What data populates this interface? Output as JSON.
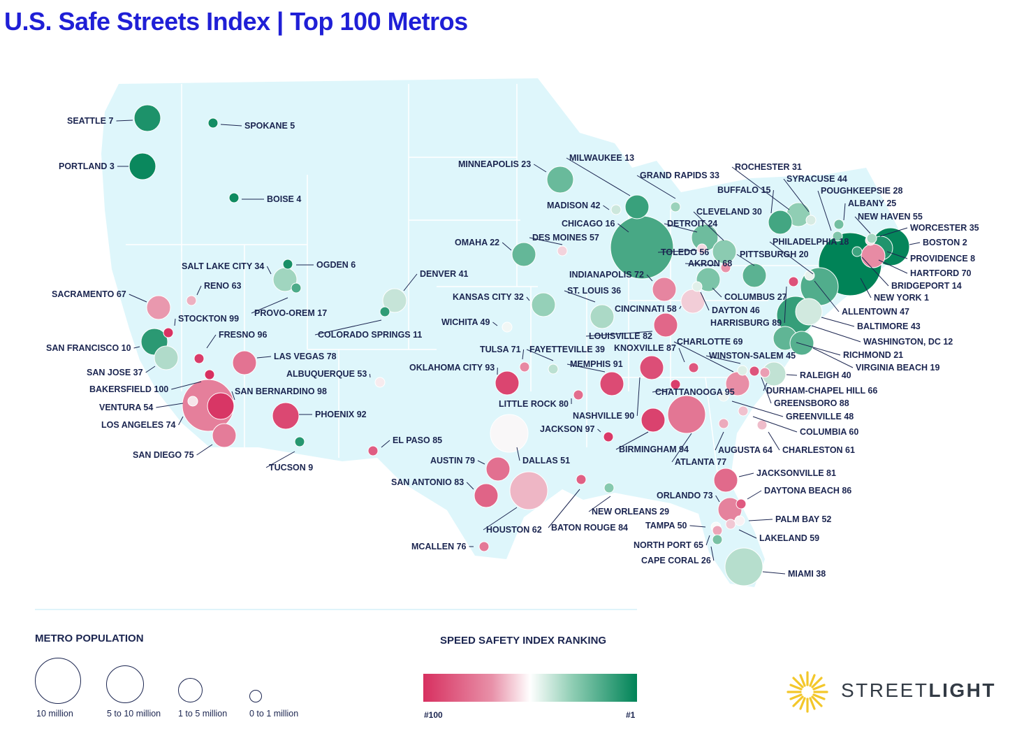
{
  "title": "U.S. Safe Streets Index  | Top 100 Metros",
  "colors": {
    "title": "#1f1fd6",
    "land": "#def6fb",
    "text": "#1b2550",
    "rank_low": "#d73060",
    "rank_mid": "#ffffff",
    "rank_high": "#008357"
  },
  "legend_population": {
    "title": "METRO POPULATION",
    "items": [
      {
        "label": "10 million",
        "icon": "circle-large"
      },
      {
        "label": "5 to 10 million",
        "icon": "circle-medium"
      },
      {
        "label": "1 to 5 million",
        "icon": "circle-small"
      },
      {
        "label": "0 to 1 million",
        "icon": "circle-tiny"
      }
    ]
  },
  "legend_ranking": {
    "title": "SPEED SAFETY INDEX RANKING",
    "min_label": "#100",
    "max_label": "#1"
  },
  "logo": {
    "prefix": "STREET",
    "suffix": "LIGHT",
    "icon": "sun-icon"
  },
  "chart_data": {
    "type": "bubble-map",
    "value_name": "Speed Safety Index Ranking (1 = safest)",
    "size_name": "Metro population class",
    "metros": [
      {
        "name": "SEATTLE",
        "rank": 7,
        "pop_class": 3
      },
      {
        "name": "SPOKANE",
        "rank": 5,
        "pop_class": 1
      },
      {
        "name": "PORTLAND",
        "rank": 3,
        "pop_class": 3
      },
      {
        "name": "BOISE",
        "rank": 4,
        "pop_class": 1
      },
      {
        "name": "MINNEAPOLIS",
        "rank": 23,
        "pop_class": 3
      },
      {
        "name": "MILWAUKEE",
        "rank": 13,
        "pop_class": 2
      },
      {
        "name": "GRAND RAPIDS",
        "rank": 33,
        "pop_class": 1
      },
      {
        "name": "ROCHESTER",
        "rank": 31,
        "pop_class": 2
      },
      {
        "name": "SYRACUSE",
        "rank": 44,
        "pop_class": 1
      },
      {
        "name": "POUGHKEEPSIE",
        "rank": 28,
        "pop_class": 1
      },
      {
        "name": "ALBANY",
        "rank": 25,
        "pop_class": 1
      },
      {
        "name": "BUFFALO",
        "rank": 15,
        "pop_class": 2
      },
      {
        "name": "NEW HAVEN",
        "rank": 55,
        "pop_class": 1
      },
      {
        "name": "WORCESTER",
        "rank": 35,
        "pop_class": 1
      },
      {
        "name": "BOSTON",
        "rank": 2,
        "pop_class": 4
      },
      {
        "name": "PROVIDENCE",
        "rank": 8,
        "pop_class": 2
      },
      {
        "name": "HARTFORD",
        "rank": 70,
        "pop_class": 2
      },
      {
        "name": "BRIDGEPORT",
        "rank": 14,
        "pop_class": 1
      },
      {
        "name": "NEW YORK",
        "rank": 1,
        "pop_class": 5
      },
      {
        "name": "MADISON",
        "rank": 42,
        "pop_class": 1
      },
      {
        "name": "CHICAGO",
        "rank": 16,
        "pop_class": 5
      },
      {
        "name": "DETROIT",
        "rank": 24,
        "pop_class": 3
      },
      {
        "name": "CLEVELAND",
        "rank": 30,
        "pop_class": 2
      },
      {
        "name": "TOLEDO",
        "rank": 56,
        "pop_class": 1
      },
      {
        "name": "AKRON",
        "rank": 68,
        "pop_class": 1
      },
      {
        "name": "PHILADELPHIA",
        "rank": 18,
        "pop_class": 4
      },
      {
        "name": "PITTSBURGH",
        "rank": 20,
        "pop_class": 2
      },
      {
        "name": "OMAHA",
        "rank": 22,
        "pop_class": 2
      },
      {
        "name": "DES MOINES",
        "rank": 57,
        "pop_class": 1
      },
      {
        "name": "INDIANAPOLIS",
        "rank": 72,
        "pop_class": 2
      },
      {
        "name": "COLUMBUS",
        "rank": 27,
        "pop_class": 2
      },
      {
        "name": "DAYTON",
        "rank": 46,
        "pop_class": 1
      },
      {
        "name": "CINCINNATI",
        "rank": 58,
        "pop_class": 2
      },
      {
        "name": "ALLENTOWN",
        "rank": 47,
        "pop_class": 1
      },
      {
        "name": "SALT LAKE CITY",
        "rank": 34,
        "pop_class": 2
      },
      {
        "name": "OGDEN",
        "rank": 6,
        "pop_class": 1
      },
      {
        "name": "RENO",
        "rank": 63,
        "pop_class": 1
      },
      {
        "name": "PROVO-OREM",
        "rank": 17,
        "pop_class": 1
      },
      {
        "name": "SACRAMENTO",
        "rank": 67,
        "pop_class": 2
      },
      {
        "name": "STOCKTON",
        "rank": 99,
        "pop_class": 1
      },
      {
        "name": "FRESNO",
        "rank": 96,
        "pop_class": 1
      },
      {
        "name": "SAN FRANCISCO",
        "rank": 10,
        "pop_class": 3
      },
      {
        "name": "SAN JOSE",
        "rank": 37,
        "pop_class": 2
      },
      {
        "name": "BAKERSFIELD",
        "rank": 100,
        "pop_class": 1
      },
      {
        "name": "VENTURA",
        "rank": 54,
        "pop_class": 1
      },
      {
        "name": "LOS ANGELES",
        "rank": 74,
        "pop_class": 6
      },
      {
        "name": "SAN BERNARDINO",
        "rank": 98,
        "pop_class": 3
      },
      {
        "name": "SAN DIEGO",
        "rank": 75,
        "pop_class": 2
      },
      {
        "name": "LAS VEGAS",
        "rank": 78,
        "pop_class": 2
      },
      {
        "name": "PHOENIX",
        "rank": 92,
        "pop_class": 3
      },
      {
        "name": "TUCSON",
        "rank": 9,
        "pop_class": 1
      },
      {
        "name": "ALBUQUERQUE",
        "rank": 53,
        "pop_class": 1
      },
      {
        "name": "DENVER",
        "rank": 41,
        "pop_class": 2
      },
      {
        "name": "COLORADO SPRINGS",
        "rank": 11,
        "pop_class": 1
      },
      {
        "name": "KANSAS CITY",
        "rank": 32,
        "pop_class": 2
      },
      {
        "name": "WICHITA",
        "rank": 49,
        "pop_class": 1
      },
      {
        "name": "ST. LOUIS",
        "rank": 36,
        "pop_class": 2
      },
      {
        "name": "LOUISVILLE",
        "rank": 82,
        "pop_class": 2
      },
      {
        "name": "KNOXVILLE",
        "rank": 87,
        "pop_class": 1
      },
      {
        "name": "CHARLOTTE",
        "rank": 69,
        "pop_class": 2
      },
      {
        "name": "WINSTON-SALEM",
        "rank": 45,
        "pop_class": 1
      },
      {
        "name": "RALEIGH",
        "rank": 40,
        "pop_class": 2
      },
      {
        "name": "DURHAM-CHAPEL HILL",
        "rank": 66,
        "pop_class": 1
      },
      {
        "name": "GREENSBORO",
        "rank": 88,
        "pop_class": 1
      },
      {
        "name": "GREENVILLE",
        "rank": 48,
        "pop_class": 1
      },
      {
        "name": "COLUMBIA",
        "rank": 60,
        "pop_class": 1
      },
      {
        "name": "CHARLESTON",
        "rank": 61,
        "pop_class": 1
      },
      {
        "name": "HARRISBURG",
        "rank": 89,
        "pop_class": 1
      },
      {
        "name": "BALTIMORE",
        "rank": 43,
        "pop_class": 3
      },
      {
        "name": "WASHINGTON, DC",
        "rank": 12,
        "pop_class": 4
      },
      {
        "name": "RICHMOND",
        "rank": 21,
        "pop_class": 2
      },
      {
        "name": "VIRGINIA BEACH",
        "rank": 19,
        "pop_class": 2
      },
      {
        "name": "TULSA",
        "rank": 71,
        "pop_class": 1
      },
      {
        "name": "FAYETTEVILLE",
        "rank": 39,
        "pop_class": 1
      },
      {
        "name": "OKLAHOMA CITY",
        "rank": 93,
        "pop_class": 2
      },
      {
        "name": "MEMPHIS",
        "rank": 91,
        "pop_class": 2
      },
      {
        "name": "LITTLE ROCK",
        "rank": 80,
        "pop_class": 1
      },
      {
        "name": "JACKSON",
        "rank": 97,
        "pop_class": 1
      },
      {
        "name": "NASHVILLE",
        "rank": 90,
        "pop_class": 2
      },
      {
        "name": "CHATTANOOGA",
        "rank": 95,
        "pop_class": 1
      },
      {
        "name": "BIRMINGHAM",
        "rank": 94,
        "pop_class": 2
      },
      {
        "name": "ATLANTA",
        "rank": 77,
        "pop_class": 4
      },
      {
        "name": "AUGUSTA",
        "rank": 64,
        "pop_class": 1
      },
      {
        "name": "EL PASO",
        "rank": 85,
        "pop_class": 1
      },
      {
        "name": "DALLAS",
        "rank": 51,
        "pop_class": 4
      },
      {
        "name": "AUSTIN",
        "rank": 79,
        "pop_class": 2
      },
      {
        "name": "SAN ANTONIO",
        "rank": 83,
        "pop_class": 2
      },
      {
        "name": "HOUSTON",
        "rank": 62,
        "pop_class": 4
      },
      {
        "name": "BATON ROUGE",
        "rank": 84,
        "pop_class": 1
      },
      {
        "name": "NEW ORLEANS",
        "rank": 29,
        "pop_class": 1
      },
      {
        "name": "MCALLEN",
        "rank": 76,
        "pop_class": 1
      },
      {
        "name": "JACKSONVILLE",
        "rank": 81,
        "pop_class": 2
      },
      {
        "name": "DAYTONA BEACH",
        "rank": 86,
        "pop_class": 1
      },
      {
        "name": "ORLANDO",
        "rank": 73,
        "pop_class": 2
      },
      {
        "name": "PALM BAY",
        "rank": 52,
        "pop_class": 1
      },
      {
        "name": "TAMPA",
        "rank": 50,
        "pop_class": 1
      },
      {
        "name": "LAKELAND",
        "rank": 59,
        "pop_class": 1
      },
      {
        "name": "NORTH PORT",
        "rank": 65,
        "pop_class": 1
      },
      {
        "name": "CAPE CORAL",
        "rank": 26,
        "pop_class": 1
      },
      {
        "name": "MIAMI",
        "rank": 38,
        "pop_class": 4
      }
    ]
  }
}
